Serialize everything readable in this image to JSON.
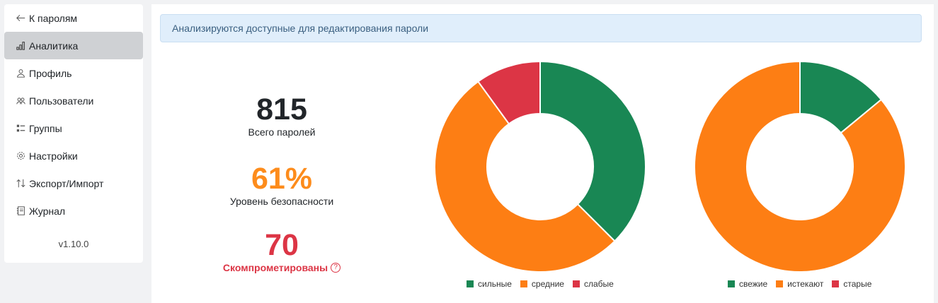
{
  "sidebar": {
    "items": [
      {
        "label": "К паролям",
        "icon": "arrow-left-icon",
        "active": false
      },
      {
        "label": "Аналитика",
        "icon": "bar-chart-icon",
        "active": true
      },
      {
        "label": "Профиль",
        "icon": "person-icon",
        "active": false
      },
      {
        "label": "Пользователи",
        "icon": "people-icon",
        "active": false
      },
      {
        "label": "Группы",
        "icon": "list-check-icon",
        "active": false
      },
      {
        "label": "Настройки",
        "icon": "gear-icon",
        "active": false
      },
      {
        "label": "Экспорт/Импорт",
        "icon": "arrow-up-down-icon",
        "active": false
      },
      {
        "label": "Журнал",
        "icon": "journal-icon",
        "active": false
      }
    ],
    "version": "v1.10.0"
  },
  "alert": {
    "text": "Анализируются доступные для редактирования пароли"
  },
  "stats": {
    "total": {
      "value": "815",
      "label": "Всего паролей"
    },
    "security": {
      "value": "61%",
      "label": "Уровень безопасности"
    },
    "compromised": {
      "value": "70",
      "label": "Скомпрометированы",
      "help": "?"
    }
  },
  "chart_data": [
    {
      "type": "pie",
      "categories": [
        "сильные",
        "средние",
        "слабые"
      ],
      "values": [
        0.375,
        0.525,
        0.1
      ],
      "colors": [
        "#198754",
        "#fd7e14",
        "#dc3545"
      ],
      "legend": "bottom"
    },
    {
      "type": "pie",
      "categories": [
        "свежие",
        "истекают",
        "старые"
      ],
      "values": [
        0.14,
        0.86,
        0.0
      ],
      "colors": [
        "#198754",
        "#fd7e14",
        "#dc3545"
      ],
      "legend": "bottom"
    }
  ]
}
